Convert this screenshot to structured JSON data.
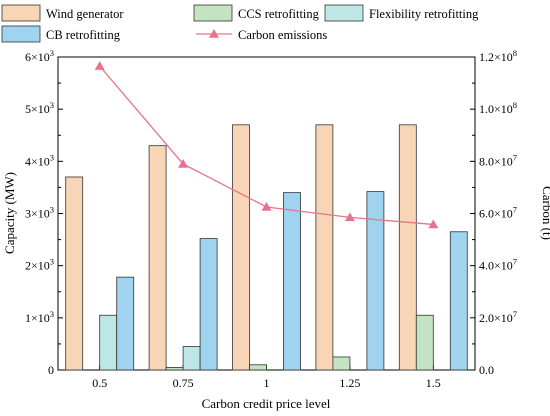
{
  "chart_data": {
    "type": "bar",
    "categories": [
      "0.5",
      "0.75",
      "1",
      "1.25",
      "1.5"
    ],
    "xlabel": "Carbon credit price level",
    "ylabel_left": "Capacity (MW)",
    "ylabel_right": "Carbon (t)",
    "y_left_ticks": [
      {
        "base": "0",
        "exp": ""
      },
      {
        "base": "1×10",
        "exp": "3"
      },
      {
        "base": "2×10",
        "exp": "3"
      },
      {
        "base": "3×10",
        "exp": "3"
      },
      {
        "base": "4×10",
        "exp": "3"
      },
      {
        "base": "5×10",
        "exp": "3"
      },
      {
        "base": "6×10",
        "exp": "3"
      }
    ],
    "y_right_ticks": [
      {
        "base": "0.0",
        "exp": ""
      },
      {
        "base": "2.0×10",
        "exp": "7"
      },
      {
        "base": "4.0×10",
        "exp": "7"
      },
      {
        "base": "6.0×10",
        "exp": "7"
      },
      {
        "base": "8.0×10",
        "exp": "7"
      },
      {
        "base": "1.0×10",
        "exp": "8"
      },
      {
        "base": "1.2×10",
        "exp": "8"
      }
    ],
    "ylim_left": [
      0,
      6000
    ],
    "ylim_right": [
      0,
      120000000
    ],
    "grid": false,
    "legend_placement": "top",
    "series": [
      {
        "name": "Wind generator",
        "color": "#f8d5b4",
        "values": [
          3700,
          4300,
          4700,
          4700,
          4700
        ]
      },
      {
        "name": "CCS retrofitting",
        "color": "#c4e3c2",
        "values": [
          0,
          50,
          100,
          250,
          1050
        ]
      },
      {
        "name": "Flexibility retrofitting",
        "color": "#bfe6e6",
        "values": [
          1050,
          450,
          0,
          0,
          0
        ]
      },
      {
        "name": "CB retrofitting",
        "color": "#9fd3ef",
        "values": [
          1780,
          2520,
          3400,
          3420,
          2650
        ]
      }
    ],
    "line_series": {
      "name": "Carbon emissions",
      "color": "#e8738a",
      "axis": "right",
      "values": [
        116500000,
        79000000,
        62500000,
        58500000,
        55800000
      ]
    }
  }
}
